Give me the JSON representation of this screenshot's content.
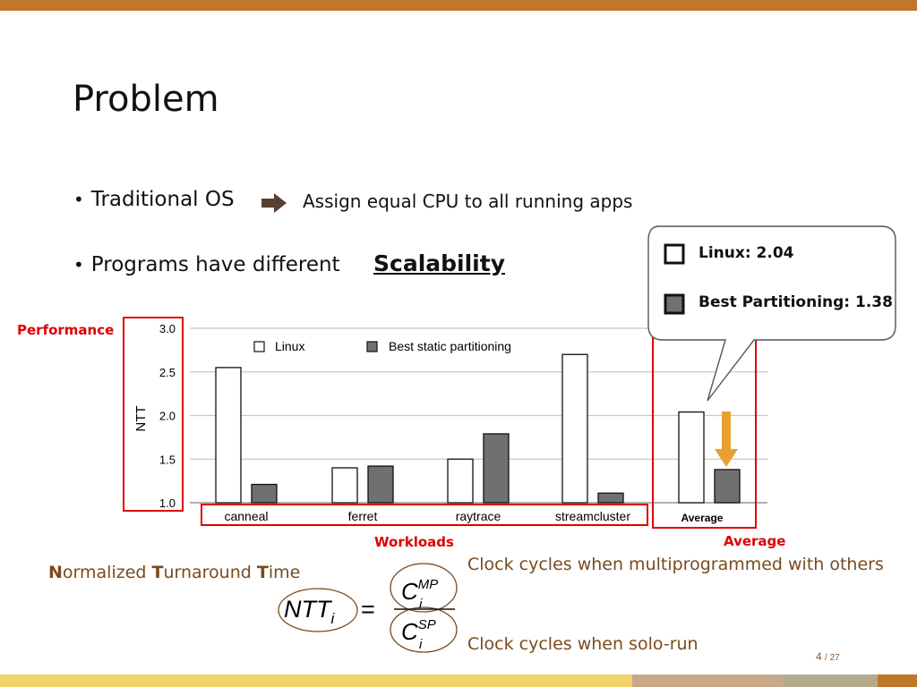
{
  "slide": {
    "title": "Problem",
    "bullet1": "Traditional OS",
    "bullet1_result": "Assign equal CPU to all running apps",
    "bullet2": "Programs have different",
    "bullet2_emphasis": "Scalability",
    "page_current": "4",
    "page_total": "/ 27",
    "colors": {
      "accent": "#c0772b",
      "highlight": "#e00000",
      "note": "#7a4a1e",
      "arrow": "#e8a030"
    }
  },
  "annotations": {
    "performance": "Performance",
    "workloads": "Workloads",
    "average": "Average"
  },
  "callout": {
    "linux": "Linux: 2.04",
    "best": "Best Partitioning: 1.38"
  },
  "formula": {
    "term_N": "N",
    "term_ormalized": "ormalized ",
    "term_T1": "T",
    "term_urnaround": "urnaround ",
    "term_T2": "T",
    "term_ime": "ime",
    "lhs": "NTT",
    "lhs_sub": "i",
    "equals": "=",
    "num": "C",
    "num_sup": "MP",
    "num_sub": "i",
    "den": "C",
    "den_sup": "SP",
    "den_sub": "i",
    "note_mp": "Clock cycles when multiprogrammed with others",
    "note_sp": "Clock cycles when solo-run"
  },
  "chart_data": {
    "type": "bar",
    "categories": [
      "canneal",
      "ferret",
      "raytrace",
      "streamcluster",
      "Average"
    ],
    "series": [
      {
        "name": "Linux",
        "values": [
          2.55,
          1.4,
          1.5,
          2.7,
          2.04
        ],
        "color": "#ffffff"
      },
      {
        "name": "Best static partitioning",
        "values": [
          1.21,
          1.42,
          1.79,
          1.11,
          1.38
        ],
        "color": "#707070"
      }
    ],
    "ylabel": "NTT",
    "ylim": [
      1.0,
      3.0
    ],
    "yticks": [
      "1.0",
      "1.5",
      "2.0",
      "2.5",
      "3.0"
    ],
    "grid": true,
    "legend": "top"
  }
}
